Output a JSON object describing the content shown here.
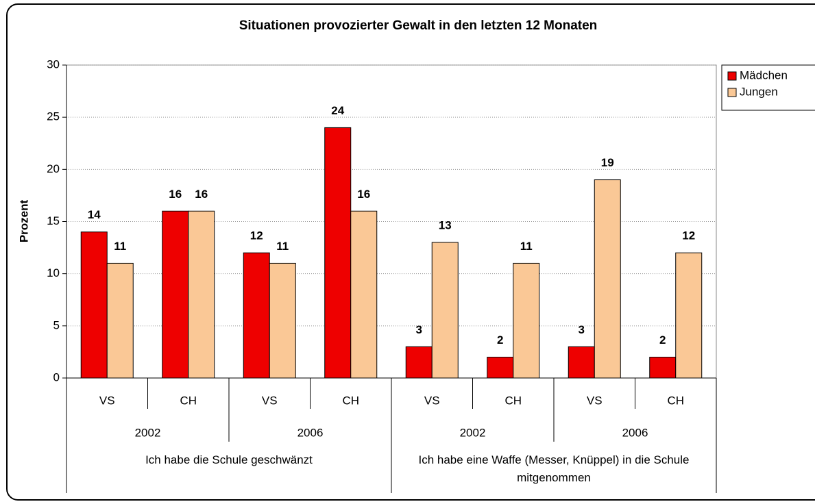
{
  "chart_data": {
    "type": "bar",
    "title": "Situationen provozierter Gewalt in den letzten 12 Monaten",
    "y_label": "Prozent",
    "categories": [
      "VS",
      "CH",
      "VS",
      "CH",
      "VS",
      "CH",
      "VS",
      "CH"
    ],
    "years": [
      "2002",
      "2006",
      "2002",
      "2006"
    ],
    "groups": [
      "Ich habe die Schule geschwänzt",
      "Ich habe eine Waffe (Messer, Knüppel) in die Schule mitgenommen"
    ],
    "series": [
      {
        "name": "Mädchen",
        "color": "#ee0000",
        "values": [
          14,
          16,
          12,
          24,
          3,
          2,
          3,
          2
        ]
      },
      {
        "name": "Jungen",
        "color": "#fac896",
        "values": [
          11,
          16,
          11,
          16,
          13,
          11,
          19,
          12
        ]
      }
    ],
    "ylim": [
      0,
      30
    ],
    "yticks": [
      0,
      5,
      10,
      15,
      20,
      25,
      30
    ],
    "grid": true,
    "legend": "right"
  }
}
